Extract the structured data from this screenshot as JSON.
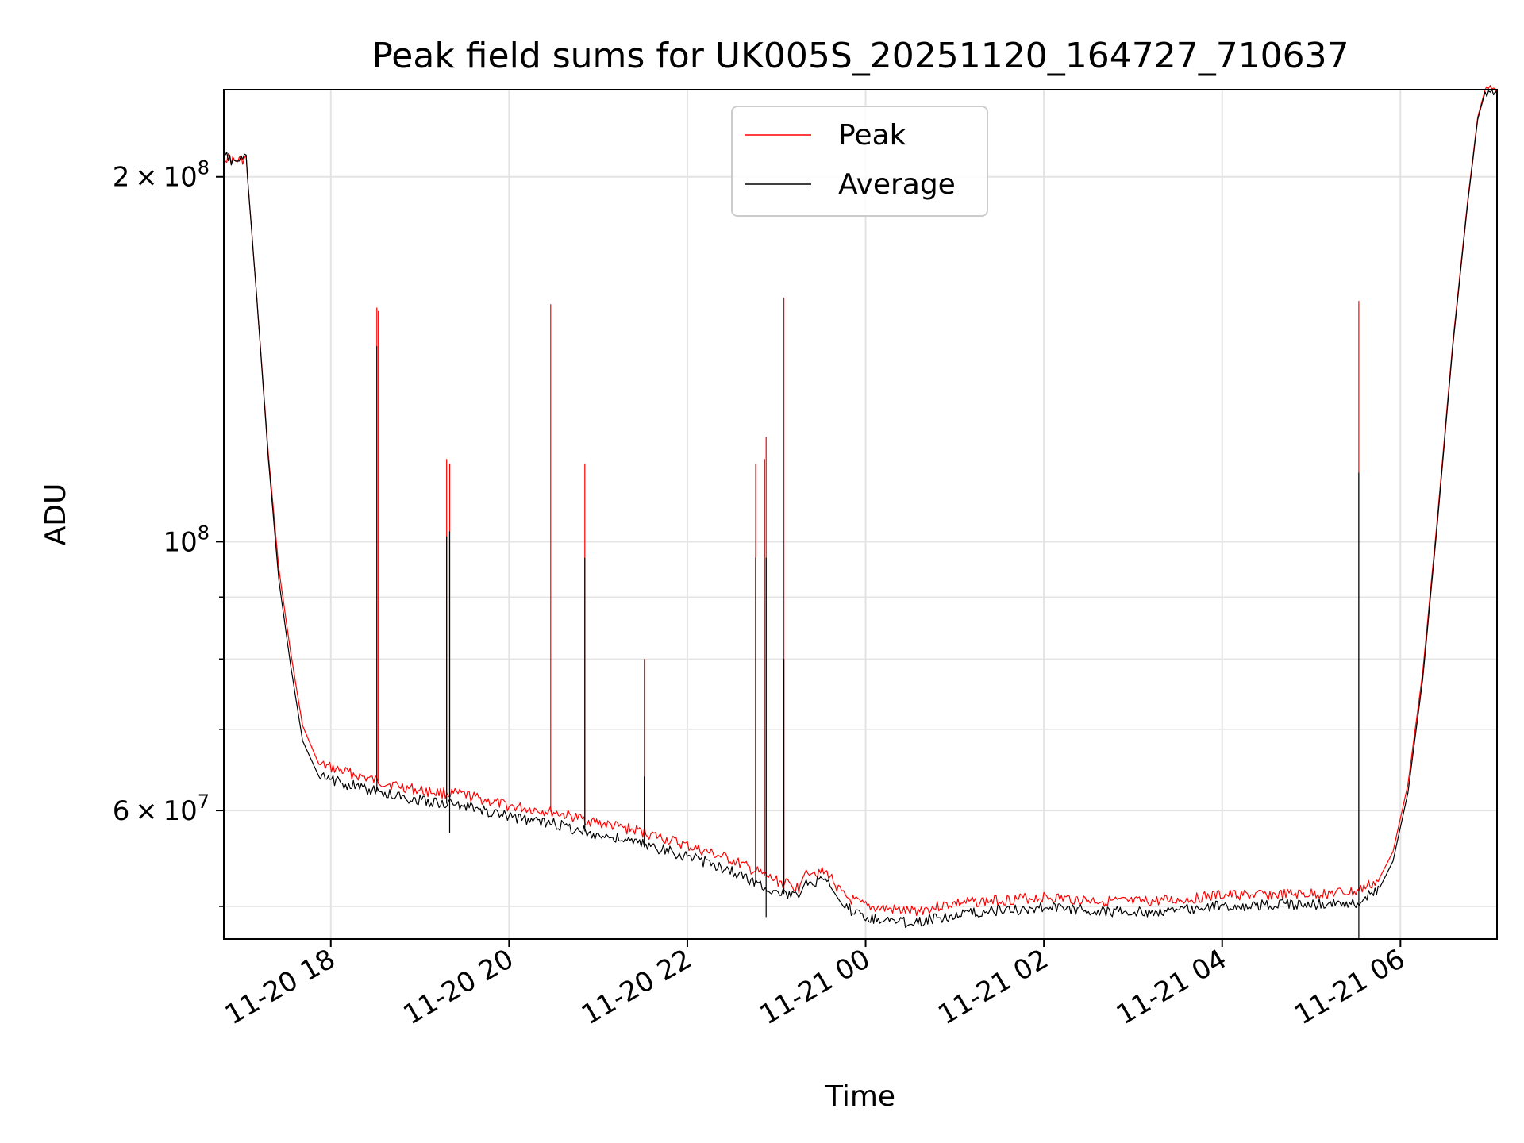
{
  "chart_data": {
    "type": "line",
    "title": "Peak field sums for UK005S_20251120_164727_710637",
    "xlabel": "Time",
    "ylabel": "ADU",
    "xlim": [
      "2025-11-20 16:48",
      "2025-11-21 07:05"
    ],
    "ylim": [
      47000000,
      236000000
    ],
    "yscale": "log",
    "grid": true,
    "legend_position": "top-center",
    "x_ticks": [
      "2025-11-20 18:00",
      "2025-11-20 20:00",
      "2025-11-20 22:00",
      "2025-11-21 00:00",
      "2025-11-21 02:00",
      "2025-11-21 04:00",
      "2025-11-21 06:00"
    ],
    "x_tick_labels": [
      "11-20 18",
      "11-20 20",
      "11-20 22",
      "11-21 00",
      "11-21 02",
      "11-21 04",
      "11-21 06"
    ],
    "y_major_ticks": [
      200000000,
      100000000,
      60000000
    ],
    "y_major_tick_labels": [
      {
        "mantissa": "2",
        "exponent": "8"
      },
      {
        "mantissa": "",
        "exponent": "8"
      },
      {
        "mantissa": "6",
        "exponent": "7"
      }
    ],
    "y_minor_ticks": [
      50000000,
      70000000,
      80000000,
      90000000
    ],
    "series": [
      {
        "name": "Peak",
        "color": "#ff0000",
        "baseline": [
          [
            "2025-11-20 16:48",
            208000000
          ],
          [
            "2025-11-20 16:55",
            206000000
          ],
          [
            "2025-11-20 17:03",
            207000000
          ],
          [
            "2025-11-20 17:10",
            160000000
          ],
          [
            "2025-11-20 17:18",
            118000000
          ],
          [
            "2025-11-20 17:25",
            95000000
          ],
          [
            "2025-11-20 17:33",
            81000000
          ],
          [
            "2025-11-20 17:41",
            70500000
          ],
          [
            "2025-11-20 17:52",
            65500000
          ],
          [
            "2025-11-20 18:30",
            63500000
          ],
          [
            "2025-11-20 19:00",
            62300000
          ],
          [
            "2025-11-20 19:30",
            61800000
          ],
          [
            "2025-11-20 20:00",
            60500000
          ],
          [
            "2025-11-20 20:30",
            59800000
          ],
          [
            "2025-11-20 21:00",
            58600000
          ],
          [
            "2025-11-20 21:30",
            57600000
          ],
          [
            "2025-11-20 22:00",
            56100000
          ],
          [
            "2025-11-20 22:30",
            54600000
          ],
          [
            "2025-11-20 22:45",
            53500000
          ],
          [
            "2025-11-20 23:00",
            52500000
          ],
          [
            "2025-11-20 23:15",
            51800000
          ],
          [
            "2025-11-20 23:20",
            53600000
          ],
          [
            "2025-11-20 23:35",
            53200000
          ],
          [
            "2025-11-20 23:45",
            51000000
          ],
          [
            "2025-11-21 00:00",
            50000000
          ],
          [
            "2025-11-21 00:30",
            49500000
          ],
          [
            "2025-11-21 01:00",
            50300000
          ],
          [
            "2025-11-21 01:30",
            50600000
          ],
          [
            "2025-11-21 02:00",
            50900000
          ],
          [
            "2025-11-21 02:30",
            50600000
          ],
          [
            "2025-11-21 03:00",
            50400000
          ],
          [
            "2025-11-21 03:30",
            50600000
          ],
          [
            "2025-11-21 04:00",
            51100000
          ],
          [
            "2025-11-21 04:30",
            51100000
          ],
          [
            "2025-11-21 05:00",
            51200000
          ],
          [
            "2025-11-21 05:30",
            51400000
          ],
          [
            "2025-11-21 05:45",
            52500000
          ],
          [
            "2025-11-21 05:55",
            55500000
          ],
          [
            "2025-11-21 06:05",
            63000000
          ],
          [
            "2025-11-21 06:15",
            78000000
          ],
          [
            "2025-11-21 06:25",
            105000000
          ],
          [
            "2025-11-21 06:35",
            145000000
          ],
          [
            "2025-11-21 06:45",
            190000000
          ],
          [
            "2025-11-21 06:52",
            224000000
          ],
          [
            "2025-11-21 06:57",
            236000000
          ],
          [
            "2025-11-21 07:05",
            236000000
          ]
        ],
        "spikes": [
          [
            "2025-11-20 18:31",
            156000000
          ],
          [
            "2025-11-20 18:32",
            155000000
          ],
          [
            "2025-11-20 19:18",
            117000000
          ],
          [
            "2025-11-20 19:20",
            116000000
          ],
          [
            "2025-11-20 20:28",
            157000000
          ],
          [
            "2025-11-20 20:51",
            116000000
          ],
          [
            "2025-11-20 21:31",
            80000000
          ],
          [
            "2025-11-20 22:46",
            116000000
          ],
          [
            "2025-11-20 22:52",
            117000000
          ],
          [
            "2025-11-20 22:53",
            122000000
          ],
          [
            "2025-11-20 23:05",
            159000000
          ],
          [
            "2025-11-21 05:32",
            158000000
          ]
        ]
      },
      {
        "name": "Average",
        "color": "#000000",
        "baseline": [
          [
            "2025-11-20 16:48",
            208000000
          ],
          [
            "2025-11-20 16:55",
            206000000
          ],
          [
            "2025-11-20 17:03",
            207000000
          ],
          [
            "2025-11-20 17:10",
            160000000
          ],
          [
            "2025-11-20 17:18",
            117000000
          ],
          [
            "2025-11-20 17:25",
            93000000
          ],
          [
            "2025-11-20 17:33",
            79000000
          ],
          [
            "2025-11-20 17:41",
            68500000
          ],
          [
            "2025-11-20 17:52",
            64000000
          ],
          [
            "2025-11-20 18:30",
            62200000
          ],
          [
            "2025-11-20 19:00",
            61200000
          ],
          [
            "2025-11-20 19:30",
            60500000
          ],
          [
            "2025-11-20 20:00",
            59300000
          ],
          [
            "2025-11-20 20:30",
            58500000
          ],
          [
            "2025-11-20 21:00",
            57300000
          ],
          [
            "2025-11-20 21:30",
            56300000
          ],
          [
            "2025-11-20 22:00",
            55000000
          ],
          [
            "2025-11-20 22:30",
            53500000
          ],
          [
            "2025-11-20 22:45",
            52400000
          ],
          [
            "2025-11-20 23:00",
            51400000
          ],
          [
            "2025-11-20 23:15",
            50800000
          ],
          [
            "2025-11-20 23:20",
            52600000
          ],
          [
            "2025-11-20 23:35",
            52200000
          ],
          [
            "2025-11-20 23:45",
            50000000
          ],
          [
            "2025-11-21 00:00",
            49000000
          ],
          [
            "2025-11-21 00:30",
            48500000
          ],
          [
            "2025-11-21 01:00",
            49200000
          ],
          [
            "2025-11-21 01:30",
            49600000
          ],
          [
            "2025-11-21 02:00",
            49900000
          ],
          [
            "2025-11-21 02:30",
            49600000
          ],
          [
            "2025-11-21 03:00",
            49400000
          ],
          [
            "2025-11-21 03:30",
            49600000
          ],
          [
            "2025-11-21 04:00",
            50100000
          ],
          [
            "2025-11-21 04:30",
            50100000
          ],
          [
            "2025-11-21 05:00",
            50200000
          ],
          [
            "2025-11-21 05:30",
            50400000
          ],
          [
            "2025-11-21 05:45",
            51500000
          ],
          [
            "2025-11-21 05:55",
            54500000
          ],
          [
            "2025-11-21 06:05",
            62000000
          ],
          [
            "2025-11-21 06:15",
            77000000
          ],
          [
            "2025-11-21 06:25",
            104000000
          ],
          [
            "2025-11-21 06:35",
            144000000
          ],
          [
            "2025-11-21 06:45",
            189000000
          ],
          [
            "2025-11-21 06:52",
            223000000
          ],
          [
            "2025-11-21 06:57",
            235000000
          ],
          [
            "2025-11-21 07:05",
            235000000
          ]
        ],
        "spikes": [
          [
            "2025-11-20 18:31",
            145000000
          ],
          [
            "2025-11-20 19:18",
            101000000
          ],
          [
            "2025-11-20 19:20",
            102000000
          ],
          [
            "2025-11-20 20:51",
            97000000
          ],
          [
            "2025-11-20 21:31",
            64000000
          ],
          [
            "2025-11-20 22:46",
            97000000
          ],
          [
            "2025-11-20 22:53",
            97000000
          ],
          [
            "2025-11-20 23:05",
            80000000
          ],
          [
            "2025-11-21 05:32",
            114000000
          ]
        ],
        "dips": [
          [
            "2025-11-20 19:20",
            57500000
          ],
          [
            "2025-11-20 22:53",
            49000000
          ],
          [
            "2025-11-21 05:32",
            47000000
          ]
        ]
      }
    ]
  }
}
